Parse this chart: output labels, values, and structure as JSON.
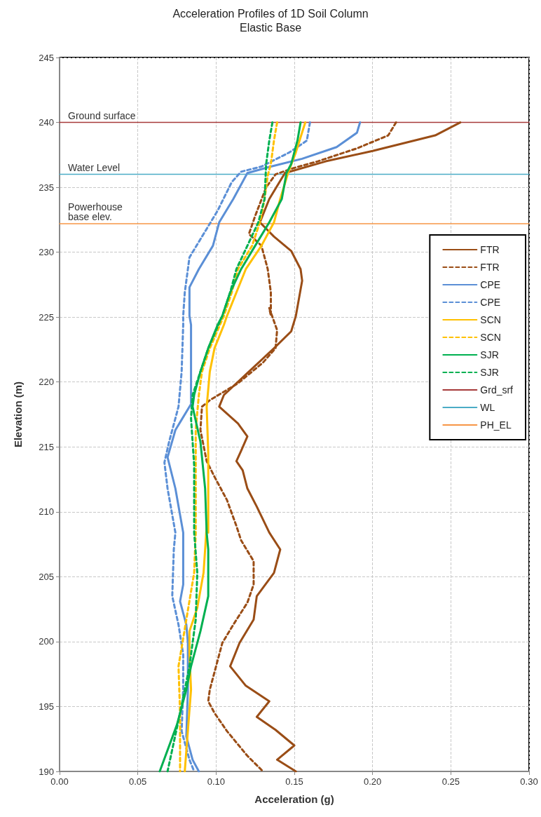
{
  "chart_data": {
    "type": "line",
    "title": "Acceleration Profiles of 1D Soil Column",
    "subtitle": "Elastic Base",
    "xlabel": "Acceleration (g)",
    "ylabel": "Elevation (m)",
    "xlim": [
      0,
      0.3
    ],
    "xticks": [
      {
        "value": 0,
        "label": "0.00"
      },
      {
        "value": 0.05,
        "label": "0.05"
      },
      {
        "value": 0.1,
        "label": "0.10"
      },
      {
        "value": 0.15,
        "label": "0.15"
      },
      {
        "value": 0.2,
        "label": "0.20"
      },
      {
        "value": 0.25,
        "label": "0.25"
      },
      {
        "value": 0.3,
        "label": "0.30"
      }
    ],
    "ylim": [
      190,
      245
    ],
    "yticks": [
      190,
      195,
      200,
      205,
      210,
      215,
      220,
      225,
      230,
      235,
      240,
      245
    ],
    "grid": true,
    "legend": "right",
    "marker": "none",
    "annotations": [
      {
        "text": "Ground surface",
        "y": 240
      },
      {
        "text": "Water Level",
        "y": 236
      },
      {
        "text": "Powerhouse base elev.",
        "y": 232.2
      }
    ],
    "series": [
      {
        "name": "FTR",
        "color": "#9a4d16",
        "line_style": "solid",
        "x": [
          0.256,
          0.24,
          0.2,
          0.17,
          0.144,
          0.134,
          0.128,
          0.137,
          0.148,
          0.154,
          0.155,
          0.151,
          0.148,
          0.137,
          0.121,
          0.105,
          0.102,
          0.114,
          0.12,
          0.116,
          0.113,
          0.117,
          0.12,
          0.126,
          0.134,
          0.141,
          0.137,
          0.126,
          0.124,
          0.115,
          0.109,
          0.119,
          0.134,
          0.126,
          0.138,
          0.15,
          0.139,
          0.151
        ],
        "values": [
          240,
          239,
          237.8,
          237,
          236.1,
          234.1,
          232.3,
          231.2,
          230.1,
          228.7,
          227.8,
          225.1,
          223.9,
          222.6,
          220.8,
          219,
          218.1,
          216.8,
          215.8,
          214.7,
          213.9,
          213.2,
          211.8,
          210.4,
          208.4,
          207.1,
          205.3,
          203.5,
          201.7,
          199.9,
          198.1,
          196.6,
          195.4,
          194.2,
          193.2,
          192,
          190.9,
          190
        ]
      },
      {
        "name": "FTR",
        "color": "#9a4d16",
        "line_style": "dashed",
        "x": [
          0.215,
          0.21,
          0.19,
          0.165,
          0.15,
          0.138,
          0.132,
          0.125,
          0.121,
          0.129,
          0.133,
          0.135,
          0.135,
          0.134,
          0.139,
          0.138,
          0.13,
          0.114,
          0.096,
          0.091,
          0.09,
          0.094,
          0.099,
          0.107,
          0.113,
          0.116,
          0.124,
          0.124,
          0.12,
          0.111,
          0.104,
          0.1,
          0.096,
          0.095,
          0.099,
          0.107,
          0.12,
          0.13
        ],
        "values": [
          240,
          239,
          238,
          237,
          236.5,
          236,
          235,
          232.8,
          231.4,
          230.5,
          228.7,
          226.9,
          225.1,
          225.7,
          224,
          222.6,
          221.5,
          219.9,
          218.6,
          218.1,
          216.3,
          213.9,
          212.7,
          210.9,
          208.9,
          207.8,
          206.2,
          204.4,
          203,
          201.3,
          199.9,
          198.1,
          196.3,
          195.4,
          194.5,
          193.1,
          191.2,
          190
        ]
      },
      {
        "name": "CPE",
        "color": "#5b8fd6",
        "line_style": "solid",
        "x": [
          0.192,
          0.19,
          0.177,
          0.155,
          0.135,
          0.12,
          0.111,
          0.102,
          0.098,
          0.089,
          0.083,
          0.083,
          0.084,
          0.084,
          0.084,
          0.074,
          0.069,
          0.074,
          0.079,
          0.079,
          0.079,
          0.077,
          0.081,
          0.082,
          0.082,
          0.081,
          0.085,
          0.089
        ],
        "values": [
          240,
          239.2,
          238.1,
          237.2,
          236.6,
          236.1,
          234.1,
          232.3,
          230.5,
          228.7,
          227.3,
          225.1,
          224.4,
          220.8,
          218.3,
          216.3,
          214.2,
          211.8,
          208.4,
          207.1,
          204.4,
          203.1,
          201.3,
          199.9,
          196.3,
          192.7,
          190.9,
          190
        ]
      },
      {
        "name": "CPE",
        "color": "#5b8fd6",
        "line_style": "dashed",
        "x": [
          0.16,
          0.158,
          0.147,
          0.129,
          0.116,
          0.11,
          0.101,
          0.092,
          0.083,
          0.08,
          0.079,
          0.079,
          0.078,
          0.076,
          0.07,
          0.067,
          0.069,
          0.074,
          0.073,
          0.072,
          0.076,
          0.079,
          0.079,
          0.078,
          0.083,
          0.086
        ],
        "values": [
          240,
          238.6,
          237.7,
          236.6,
          236.2,
          235.4,
          233.2,
          231.4,
          229.6,
          226.9,
          225.1,
          224.4,
          220.8,
          218.1,
          215.4,
          213.8,
          211.8,
          208.4,
          207.1,
          203.5,
          201.3,
          199,
          196.3,
          193.1,
          190.9,
          190
        ]
      },
      {
        "name": "SCN",
        "color": "#ffc000",
        "line_style": "solid",
        "x": [
          0.157,
          0.151,
          0.146,
          0.141,
          0.137,
          0.129,
          0.119,
          0.113,
          0.107,
          0.105,
          0.099,
          0.096,
          0.094,
          0.095,
          0.095,
          0.094,
          0.092,
          0.088,
          0.083,
          0.083,
          0.084,
          0.08
        ],
        "values": [
          240,
          237.7,
          236.1,
          234.1,
          232.3,
          230.5,
          228.7,
          226.9,
          225.1,
          224.4,
          222.6,
          220.8,
          218.1,
          214.5,
          208.4,
          208.9,
          205.3,
          202.6,
          200.8,
          199,
          196.3,
          190
        ]
      },
      {
        "name": "SCN",
        "color": "#ffc000",
        "line_style": "dashed",
        "x": [
          0.139,
          0.137,
          0.135,
          0.133,
          0.131,
          0.128,
          0.123,
          0.114,
          0.11,
          0.105,
          0.096,
          0.091,
          0.089,
          0.087,
          0.087,
          0.087,
          0.086,
          0.081,
          0.076,
          0.077,
          0.077
        ],
        "values": [
          240,
          238.6,
          236.8,
          235.9,
          234.1,
          232.3,
          230.5,
          228.7,
          226.9,
          225.1,
          222.6,
          220.8,
          219,
          216.3,
          211.8,
          208.4,
          205.3,
          201.7,
          198.1,
          194.5,
          190
        ]
      },
      {
        "name": "SJR",
        "color": "#00b050",
        "line_style": "solid",
        "x": [
          0.154,
          0.152,
          0.148,
          0.145,
          0.142,
          0.134,
          0.125,
          0.116,
          0.109,
          0.104,
          0.101,
          0.095,
          0.09,
          0.086,
          0.085,
          0.09,
          0.093,
          0.094,
          0.095,
          0.095,
          0.09,
          0.084,
          0.081,
          0.075,
          0.064
        ],
        "values": [
          240,
          238.6,
          236.8,
          236.1,
          234.1,
          232.3,
          230.5,
          228.7,
          226.9,
          225.1,
          224.4,
          222.6,
          220.8,
          219,
          218.1,
          215.4,
          211.8,
          208.4,
          207.1,
          203.5,
          200.8,
          198.1,
          196.3,
          193.6,
          190
        ]
      },
      {
        "name": "SJR",
        "color": "#00b050",
        "line_style": "dashed",
        "x": [
          0.136,
          0.134,
          0.132,
          0.131,
          0.127,
          0.12,
          0.113,
          0.109,
          0.104,
          0.095,
          0.09,
          0.085,
          0.084,
          0.086,
          0.086,
          0.088,
          0.087,
          0.083,
          0.077,
          0.069
        ],
        "values": [
          240,
          238.6,
          236.8,
          234.1,
          232.3,
          230.5,
          228.7,
          226.9,
          225.1,
          222.6,
          220.8,
          219,
          217.2,
          213.6,
          208.4,
          205.3,
          201.7,
          198.1,
          194.5,
          190
        ]
      },
      {
        "name": "Grd_srf",
        "color": "#a63a3a",
        "line_style": "solid",
        "x": [
          0,
          0.3
        ],
        "values": [
          240,
          240
        ]
      },
      {
        "name": "WL",
        "color": "#4bacc6",
        "line_style": "solid",
        "x": [
          0,
          0.3
        ],
        "values": [
          236,
          236
        ]
      },
      {
        "name": "PH_EL",
        "color": "#f79646",
        "line_style": "solid",
        "x": [
          0,
          0.3
        ],
        "values": [
          232.2,
          232.2
        ]
      }
    ]
  }
}
